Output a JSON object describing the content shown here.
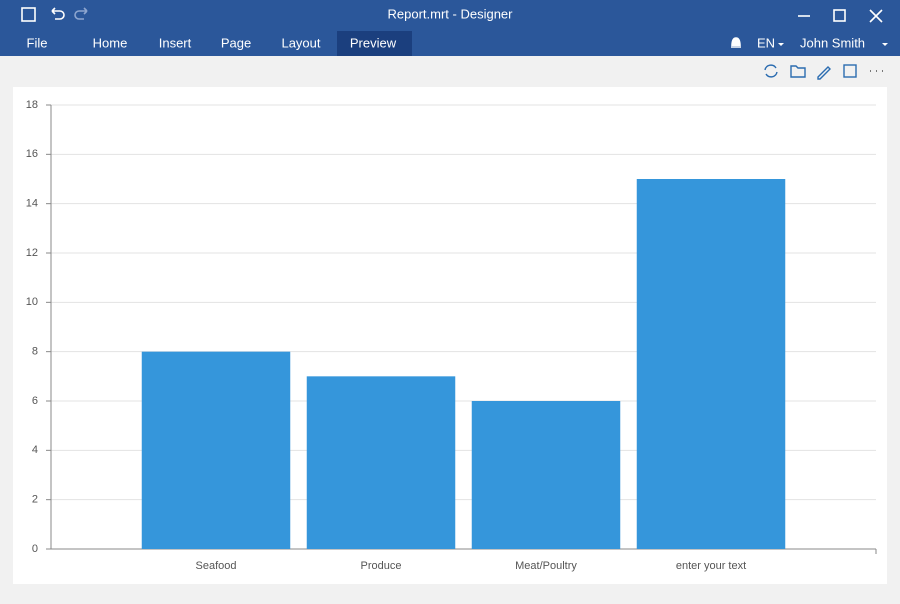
{
  "window": {
    "title": "Report.mrt - Designer",
    "menu": [
      "File",
      "Home",
      "Insert",
      "Page",
      "Layout",
      "Preview"
    ],
    "language": "EN",
    "user": "John Smith"
  },
  "chart_data": {
    "type": "bar",
    "categories": [
      "Seafood",
      "Produce",
      "Meat/Poultry",
      "enter your text"
    ],
    "values": [
      8,
      7,
      6,
      15
    ],
    "color": "#3596db",
    "ylim": [
      0,
      18
    ],
    "yticks": [
      0,
      2,
      4,
      6,
      8,
      10,
      12,
      14,
      16,
      18
    ],
    "grid": true
  }
}
